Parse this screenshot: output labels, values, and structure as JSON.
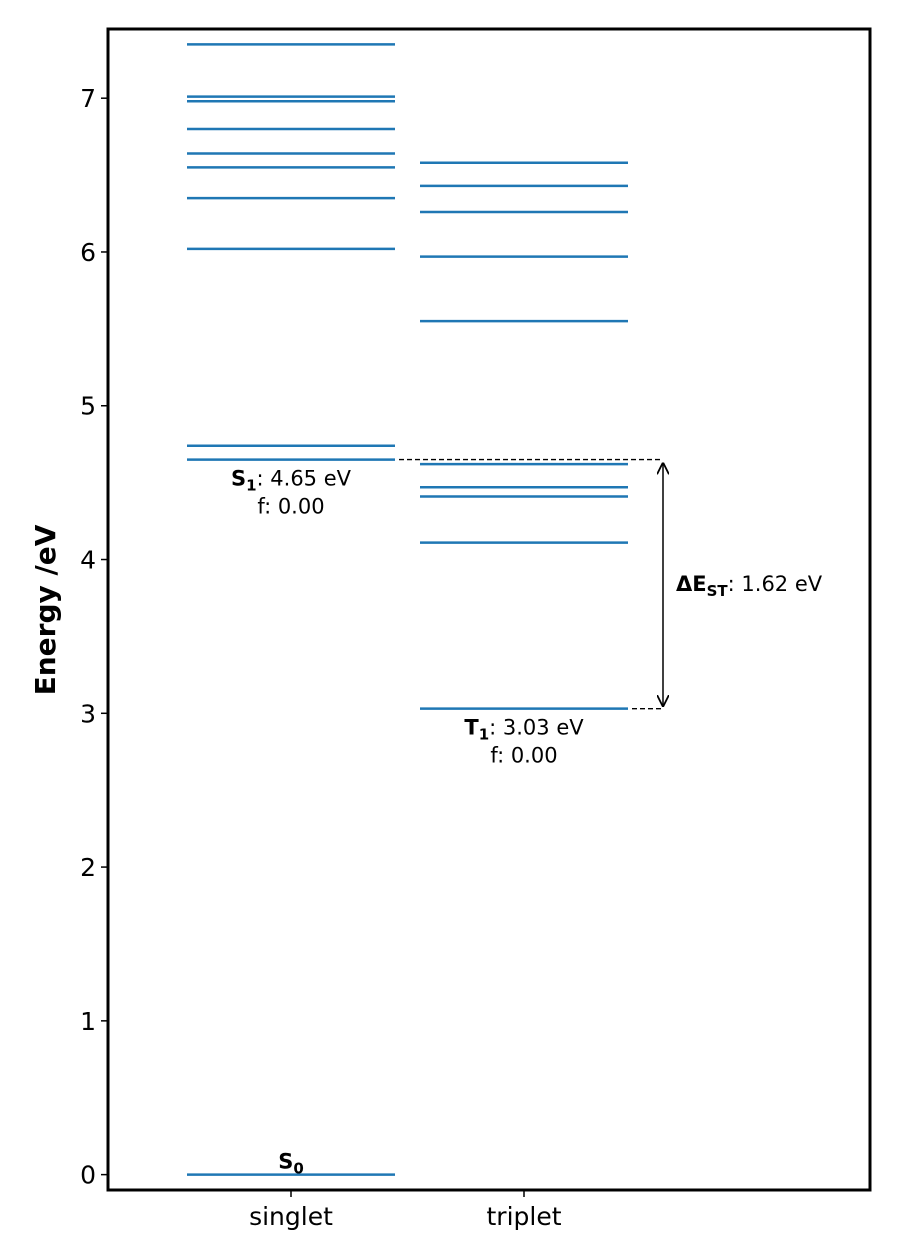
{
  "chart_data": {
    "type": "energy_levels",
    "ylabel": "Energy /eV",
    "categories": [
      "singlet",
      "triplet"
    ],
    "color": "#1f77b4",
    "levels": [
      [
        7.35,
        7.01,
        6.98,
        6.8,
        6.64,
        6.55,
        6.35,
        6.02,
        4.74,
        4.65,
        0
      ],
      [
        6.58,
        6.43,
        6.26,
        5.97,
        5.55,
        4.62,
        4.47,
        4.41,
        4.11,
        3.03
      ]
    ],
    "ylim": [
      -0.1,
      7.45
    ],
    "yticks": [
      0,
      1,
      2,
      3,
      4,
      5,
      6,
      7
    ],
    "annotations": {
      "s0": {
        "label": "S",
        "sub": "0"
      },
      "s1": {
        "label": "S",
        "sub": "1",
        "text": ": 4.65 eV",
        "note": "f: 0.00"
      },
      "t1": {
        "label": "T",
        "sub": "1",
        "text": ": 3.03 eV",
        "note": "f: 0.00"
      },
      "gap": {
        "label": "ΔE",
        "sub": "ST",
        "text": ": 1.62 eV"
      }
    }
  }
}
